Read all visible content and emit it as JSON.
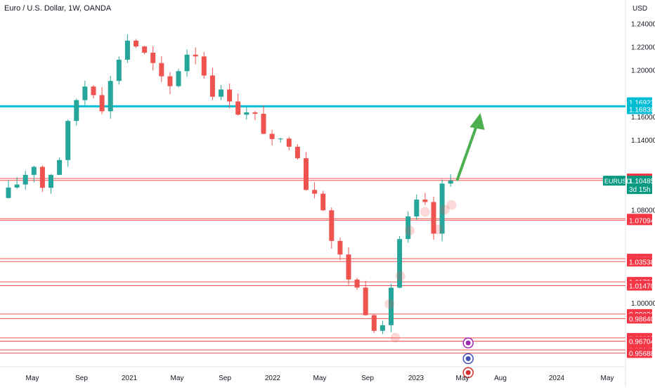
{
  "chart_data": {
    "type": "candlestick",
    "title": "Euro / U.S. Dollar, 1W, OANDA",
    "currency_label": "USD",
    "symbol": "EURUSD",
    "last_price": "1.10485",
    "countdown": "3d 15h",
    "x_ticks": [
      "May",
      "Sep",
      "2021",
      "May",
      "Sep",
      "2022",
      "May",
      "Sep",
      "2023",
      "May",
      "Aug",
      "2024",
      "May"
    ],
    "y_ticks": [
      "1.24000",
      "1.22000",
      "1.20000",
      "1.16000",
      "1.14000",
      "1.08000",
      "1.00000"
    ],
    "y_range": [
      0.945,
      1.248
    ],
    "grid": false,
    "colors": {
      "up": "#26a69a",
      "down": "#ef5350",
      "level_line": "#ef5350",
      "highlight": "#00bcd4",
      "arrow": "#4caf50",
      "badge_red": "#f23645",
      "badge_cyan": "#00bcd4",
      "badge_teal": "#089981"
    },
    "horizontal_levels": [
      {
        "value": 1.10678,
        "label": "1.10678",
        "color": "red"
      },
      {
        "value": 1.10511,
        "label": "1.10511",
        "color": "red"
      },
      {
        "value": 1.0722,
        "label": "1.07220",
        "color": "red"
      },
      {
        "value": 1.07094,
        "label": "1.07094",
        "color": "red"
      },
      {
        "value": 1.03788,
        "label": "1.03788",
        "color": "red"
      },
      {
        "value": 1.03538,
        "label": "1.03538",
        "color": "red"
      },
      {
        "value": 1.01796,
        "label": "1.01796",
        "color": "red"
      },
      {
        "value": 1.0147,
        "label": "1.01470",
        "color": "red"
      },
      {
        "value": 0.99036,
        "label": "0.99036",
        "color": "red"
      },
      {
        "value": 0.9864,
        "label": "0.98640",
        "color": "red"
      },
      {
        "value": 0.96985,
        "label": "0.96985",
        "color": "red"
      },
      {
        "value": 0.96704,
        "label": "0.96704",
        "color": "red"
      },
      {
        "value": 0.95945,
        "label": "0.95945",
        "color": "red"
      },
      {
        "value": 0.95688,
        "label": "0.95688",
        "color": "red"
      }
    ],
    "highlight_zone": {
      "top": 1.16923,
      "bottom": 1.1683,
      "labels": [
        "1.16923",
        "1.16830"
      ]
    },
    "price_path": [
      [
        0.0,
        1.09
      ],
      [
        3.5,
        1.12
      ],
      [
        4.5,
        1.1
      ],
      [
        6.5,
        1.125
      ],
      [
        8.0,
        1.165
      ],
      [
        9.0,
        1.185
      ],
      [
        10.0,
        1.19
      ],
      [
        11.5,
        1.17
      ],
      [
        12.0,
        1.18
      ],
      [
        13.0,
        1.198
      ],
      [
        14.0,
        1.225
      ],
      [
        15.0,
        1.228
      ],
      [
        16.0,
        1.215
      ],
      [
        17.0,
        1.21
      ],
      [
        18.5,
        1.19
      ],
      [
        19.0,
        1.175
      ],
      [
        20.0,
        1.195
      ],
      [
        21.5,
        1.215
      ],
      [
        22.0,
        1.22
      ],
      [
        23.0,
        1.21
      ],
      [
        24.0,
        1.185
      ],
      [
        25.0,
        1.18
      ],
      [
        26.5,
        1.178
      ],
      [
        27.5,
        1.165
      ],
      [
        29.0,
        1.16
      ],
      [
        30.0,
        1.157
      ],
      [
        31.5,
        1.135
      ],
      [
        32.0,
        1.13
      ],
      [
        33.0,
        1.145
      ],
      [
        34.5,
        1.13
      ],
      [
        35.5,
        1.1
      ],
      [
        36.0,
        1.105
      ],
      [
        37.5,
        1.085
      ],
      [
        38.0,
        1.06
      ],
      [
        39.0,
        1.048
      ],
      [
        40.0,
        1.03
      ],
      [
        41.0,
        1.015
      ],
      [
        41.5,
        1.012
      ],
      [
        42.0,
        1.005
      ],
      [
        43.0,
        0.985
      ],
      [
        44.5,
        0.975
      ],
      [
        45.0,
        0.99
      ],
      [
        46.0,
        1.04
      ],
      [
        46.5,
        1.055
      ],
      [
        47.0,
        1.065
      ],
      [
        48.0,
        1.075
      ],
      [
        48.8,
        1.09
      ],
      [
        49.3,
        1.083
      ],
      [
        50.0,
        1.078
      ],
      [
        50.5,
        1.06
      ],
      [
        51.0,
        1.085
      ],
      [
        51.5,
        1.098
      ],
      [
        52.0,
        1.101
      ],
      [
        52.4,
        1.104
      ]
    ],
    "annotations": {
      "arrow": {
        "from": [
          52.8,
          1.106
        ],
        "to": [
          55.5,
          1.163
        ]
      },
      "markers": [
        {
          "x": 45.5,
          "y": 0.97
        },
        {
          "x": 44.8,
          "y": 0.999
        },
        {
          "x": 46.1,
          "y": 1.023
        },
        {
          "x": 47.2,
          "y": 1.062
        },
        {
          "x": 49.0,
          "y": 1.078
        },
        {
          "x": 50.5,
          "y": 1.063
        },
        {
          "x": 51.3,
          "y": 1.08
        },
        {
          "x": 52.1,
          "y": 1.084
        }
      ],
      "event_icons": [
        {
          "name": "lightning-icon",
          "x": 52.0,
          "y": 0.9655,
          "color": "#9c27b0"
        },
        {
          "name": "earnings-icon",
          "x": 52.0,
          "y": 0.952,
          "color": "#3f51b5"
        },
        {
          "name": "us-flag-icon",
          "x": 52.0,
          "y": 0.94,
          "color": "#d32f2f"
        }
      ]
    }
  }
}
